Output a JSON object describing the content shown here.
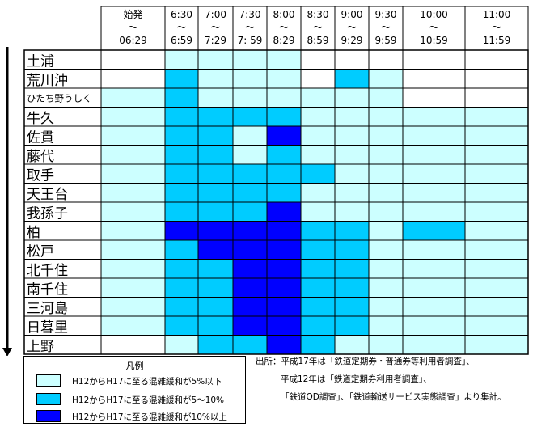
{
  "chart_data": {
    "type": "heatmap",
    "columns": [
      {
        "top": "始発",
        "mid": "〜",
        "bottom": "06:29"
      },
      {
        "top": "6:30",
        "mid": "〜",
        "bottom": "6:59"
      },
      {
        "top": "7:00",
        "mid": "〜",
        "bottom": "7:29"
      },
      {
        "top": "7:30",
        "mid": "〜",
        "bottom": "7: 59"
      },
      {
        "top": "8:00",
        "mid": "〜",
        "bottom": "8:29"
      },
      {
        "top": "8:30",
        "mid": "〜",
        "bottom": "8:59"
      },
      {
        "top": "9:00",
        "mid": "〜",
        "bottom": "9:29"
      },
      {
        "top": "9:30",
        "mid": "〜",
        "bottom": "9:59"
      },
      {
        "top": "10:00",
        "mid": "〜",
        "bottom": "10:59"
      },
      {
        "top": "11:00",
        "mid": "〜",
        "bottom": "11:59"
      }
    ],
    "stations": [
      "土浦",
      "荒川沖",
      "ひたち野うしく",
      "牛久",
      "佐貫",
      "藤代",
      "取手",
      "天王台",
      "我孫子",
      "柏",
      "松戸",
      "北千住",
      "南千住",
      "三河島",
      "日暮里",
      "上野"
    ],
    "levels": [
      [
        0,
        1,
        1,
        1,
        1,
        0,
        0,
        0,
        0,
        0
      ],
      [
        0,
        2,
        1,
        1,
        1,
        0,
        2,
        1,
        0,
        0
      ],
      [
        1,
        2,
        1,
        1,
        1,
        1,
        1,
        1,
        0,
        0
      ],
      [
        1,
        2,
        2,
        2,
        2,
        1,
        1,
        1,
        1,
        1
      ],
      [
        1,
        2,
        2,
        1,
        3,
        1,
        1,
        1,
        1,
        1
      ],
      [
        1,
        2,
        2,
        1,
        2,
        1,
        1,
        1,
        1,
        1
      ],
      [
        1,
        2,
        2,
        2,
        2,
        2,
        1,
        1,
        1,
        1
      ],
      [
        1,
        2,
        2,
        2,
        2,
        1,
        1,
        1,
        1,
        1
      ],
      [
        1,
        2,
        2,
        2,
        3,
        1,
        1,
        1,
        1,
        1
      ],
      [
        1,
        3,
        3,
        3,
        3,
        2,
        2,
        1,
        2,
        1
      ],
      [
        1,
        2,
        3,
        3,
        3,
        2,
        2,
        1,
        1,
        1
      ],
      [
        1,
        2,
        2,
        3,
        3,
        2,
        2,
        1,
        1,
        1
      ],
      [
        1,
        2,
        2,
        3,
        3,
        2,
        2,
        1,
        1,
        1
      ],
      [
        1,
        2,
        2,
        3,
        3,
        2,
        2,
        1,
        1,
        1
      ],
      [
        1,
        2,
        2,
        3,
        3,
        2,
        2,
        1,
        1,
        1
      ],
      [
        0,
        1,
        2,
        2,
        3,
        2,
        1,
        1,
        1,
        1
      ]
    ],
    "level_colors": [
      "#ffffff",
      "#ccffff",
      "#00ccff",
      "#0000ff"
    ]
  },
  "legend": {
    "title": "凡例",
    "items": [
      {
        "label": "H12からH17に至る混雑緩和が5%以下",
        "color": "#ccffff"
      },
      {
        "label": "H12からH17に至る混雑緩和が5〜10%",
        "color": "#00ccff"
      },
      {
        "label": "H12からH17に至る混雑緩和が10%以上",
        "color": "#0000ff"
      }
    ]
  },
  "source": {
    "lines": [
      "出所：平成17年は「鉄道定期券・普通券等利用者調査」、",
      "平成12年は「鉄道定期券利用者調査」、",
      "「鉄道OD調査」、「鉄道輸送サービス実態調査」より集計。"
    ]
  }
}
